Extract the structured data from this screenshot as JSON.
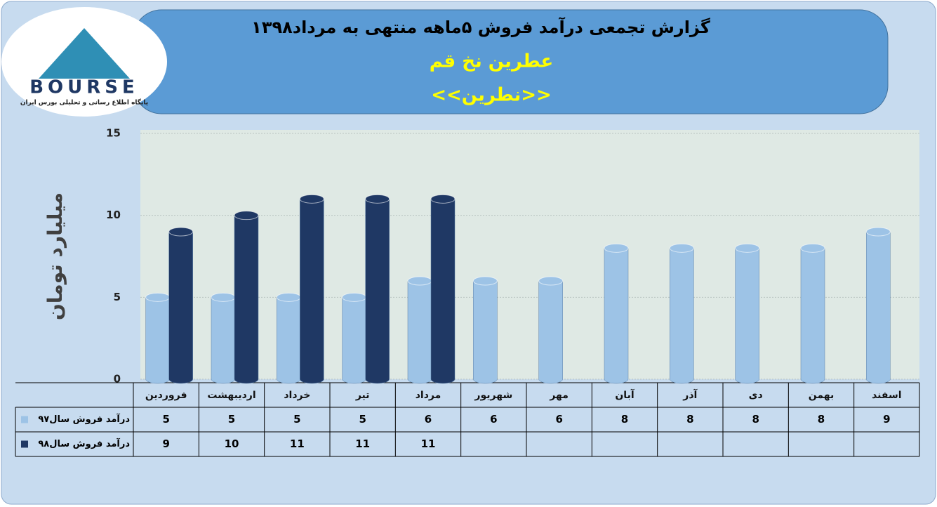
{
  "logo": {
    "name": "BOURSE",
    "tagline": "پایگاه اطلاع رسانی و تحلیلی بورس ایران"
  },
  "chart_data": {
    "type": "bar",
    "title": "گزارش تجمعی درآمد فروش ۵ماهه منتهی به مرداد۱۳۹۸",
    "subtitle": "عطرین نخ قم",
    "symbol": "<<نطرین>>",
    "y_label": "میلیارد تومان",
    "categories": [
      "فروردین",
      "اردیبهشت",
      "خرداد",
      "تیر",
      "مرداد",
      "شهریور",
      "مهر",
      "آبان",
      "آذر",
      "دی",
      "بهمن",
      "اسفند"
    ],
    "series": [
      {
        "name": "درآمد فروش سال۹۷",
        "color": "#9dc3e6",
        "values": [
          5,
          5,
          5,
          5,
          6,
          6,
          6,
          8,
          8,
          8,
          8,
          9
        ]
      },
      {
        "name": "درآمد فروش سال۹۸",
        "color": "#1f3864",
        "values": [
          9,
          10,
          11,
          11,
          11,
          null,
          null,
          null,
          null,
          null,
          null,
          null
        ]
      }
    ],
    "ylim": [
      0,
      15
    ],
    "yticks": [
      0,
      5,
      10,
      15
    ],
    "grid": true
  }
}
